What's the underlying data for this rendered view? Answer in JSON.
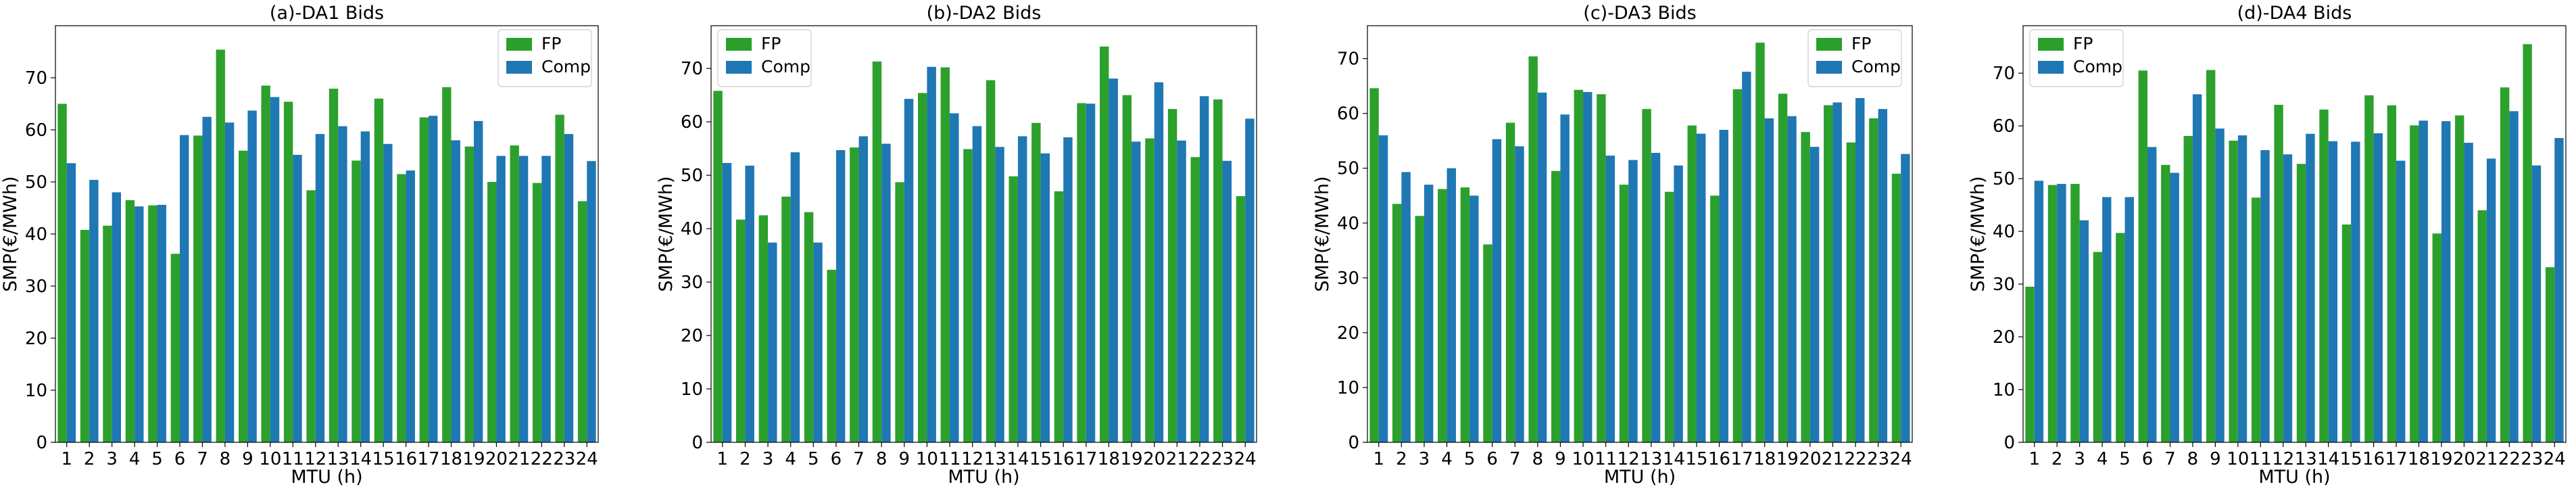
{
  "chart_data": [
    {
      "type": "bar",
      "title": "(a)-DA1 Bids",
      "xlabel": "MTU (h)",
      "ylabel": "SMP(€/MWh)",
      "ylim": [
        0,
        80
      ],
      "yticks": [
        0,
        10,
        20,
        30,
        40,
        50,
        60,
        70
      ],
      "grid": false,
      "legend_position": "top-right",
      "categories": [
        "1",
        "2",
        "3",
        "4",
        "5",
        "6",
        "7",
        "8",
        "9",
        "10",
        "11",
        "12",
        "13",
        "14",
        "15",
        "16",
        "17",
        "18",
        "19",
        "20",
        "21",
        "22",
        "23",
        "24"
      ],
      "series": [
        {
          "name": "FP",
          "color": "#2ca02c",
          "values": [
            65.0,
            40.8,
            41.6,
            46.5,
            45.5,
            36.2,
            58.9,
            75.4,
            56.0,
            68.5,
            65.4,
            48.4,
            67.9,
            54.1,
            66.0,
            51.5,
            62.4,
            68.2,
            56.8,
            50.0,
            57.0,
            49.8,
            62.9,
            46.3
          ]
        },
        {
          "name": "Comp",
          "color": "#1f77b4",
          "values": [
            53.6,
            50.4,
            48.0,
            45.3,
            45.6,
            59.0,
            62.5,
            61.4,
            63.7,
            66.3,
            55.2,
            59.2,
            60.7,
            59.7,
            57.3,
            52.2,
            62.7,
            58.0,
            61.7,
            55.0,
            55.0,
            55.0,
            59.2,
            54.0
          ]
        }
      ]
    },
    {
      "type": "bar",
      "title": "(b)-DA2 Bids",
      "xlabel": "MTU (h)",
      "ylabel": "SMP(€/MWh)",
      "ylim": [
        0,
        78
      ],
      "yticks": [
        0,
        10,
        20,
        30,
        40,
        50,
        60,
        70
      ],
      "grid": false,
      "legend_position": "top-left",
      "categories": [
        "1",
        "2",
        "3",
        "4",
        "5",
        "6",
        "7",
        "8",
        "9",
        "10",
        "11",
        "12",
        "13",
        "14",
        "15",
        "16",
        "17",
        "18",
        "19",
        "20",
        "21",
        "22",
        "23",
        "24"
      ],
      "series": [
        {
          "name": "FP",
          "color": "#2ca02c",
          "values": [
            65.8,
            41.7,
            42.5,
            46.0,
            43.1,
            32.3,
            55.2,
            71.3,
            48.7,
            65.4,
            70.2,
            54.9,
            67.8,
            49.8,
            59.8,
            47.0,
            63.5,
            74.1,
            65.0,
            56.9,
            62.4,
            53.4,
            64.2,
            46.1
          ]
        },
        {
          "name": "Comp",
          "color": "#1f77b4",
          "values": [
            52.3,
            51.8,
            37.4,
            54.3,
            37.4,
            54.7,
            57.3,
            55.9,
            64.3,
            70.3,
            61.6,
            59.2,
            55.3,
            57.3,
            54.1,
            57.1,
            63.4,
            68.1,
            56.3,
            67.4,
            56.5,
            64.8,
            52.7,
            60.6
          ]
        }
      ]
    },
    {
      "type": "bar",
      "title": "(c)-DA3 Bids",
      "xlabel": "MTU (h)",
      "ylabel": "SMP(€/MWh)",
      "ylim": [
        0,
        76
      ],
      "yticks": [
        0,
        10,
        20,
        30,
        40,
        50,
        60,
        70
      ],
      "grid": false,
      "legend_position": "top-right",
      "categories": [
        "1",
        "2",
        "3",
        "4",
        "5",
        "6",
        "7",
        "8",
        "9",
        "10",
        "11",
        "12",
        "13",
        "14",
        "15",
        "16",
        "17",
        "18",
        "19",
        "20",
        "21",
        "22",
        "23",
        "24"
      ],
      "series": [
        {
          "name": "FP",
          "color": "#2ca02c",
          "values": [
            64.6,
            43.5,
            41.3,
            46.2,
            46.5,
            36.1,
            58.3,
            70.4,
            49.5,
            64.3,
            63.5,
            47.0,
            60.8,
            45.7,
            57.8,
            45.0,
            64.4,
            72.9,
            63.6,
            56.6,
            61.5,
            54.7,
            59.1,
            49.0
          ]
        },
        {
          "name": "Comp",
          "color": "#1f77b4",
          "values": [
            56.0,
            49.3,
            47.0,
            50.0,
            45.0,
            55.3,
            54.0,
            63.8,
            59.8,
            63.9,
            52.3,
            51.5,
            52.8,
            50.5,
            56.3,
            57.0,
            67.6,
            59.1,
            59.5,
            53.9,
            62.0,
            62.8,
            60.8,
            52.6
          ]
        }
      ]
    },
    {
      "type": "bar",
      "title": "(d)-DA4 Bids",
      "xlabel": "MTU (h)",
      "ylabel": "SMP(€/MWh)",
      "ylim": [
        0,
        79
      ],
      "yticks": [
        0,
        10,
        20,
        30,
        40,
        50,
        60,
        70
      ],
      "grid": false,
      "legend_position": "top-left",
      "categories": [
        "1",
        "2",
        "3",
        "4",
        "5",
        "6",
        "7",
        "8",
        "9",
        "10",
        "11",
        "12",
        "13",
        "14",
        "15",
        "16",
        "17",
        "18",
        "19",
        "20",
        "21",
        "22",
        "23",
        "24"
      ],
      "series": [
        {
          "name": "FP",
          "color": "#2ca02c",
          "values": [
            29.5,
            48.8,
            49.0,
            36.1,
            39.7,
            70.5,
            52.6,
            58.1,
            70.6,
            57.2,
            46.4,
            64.0,
            52.8,
            63.1,
            41.3,
            65.8,
            63.9,
            60.1,
            39.6,
            62.0,
            44.0,
            67.3,
            75.5,
            33.2
          ]
        },
        {
          "name": "Comp",
          "color": "#1f77b4",
          "values": [
            49.6,
            49.0,
            42.1,
            46.5,
            46.5,
            56.0,
            51.1,
            66.0,
            59.5,
            58.2,
            55.4,
            54.6,
            58.5,
            57.1,
            57.0,
            58.6,
            53.4,
            61.0,
            60.9,
            56.8,
            53.8,
            62.8,
            52.5,
            57.7
          ]
        }
      ]
    }
  ]
}
